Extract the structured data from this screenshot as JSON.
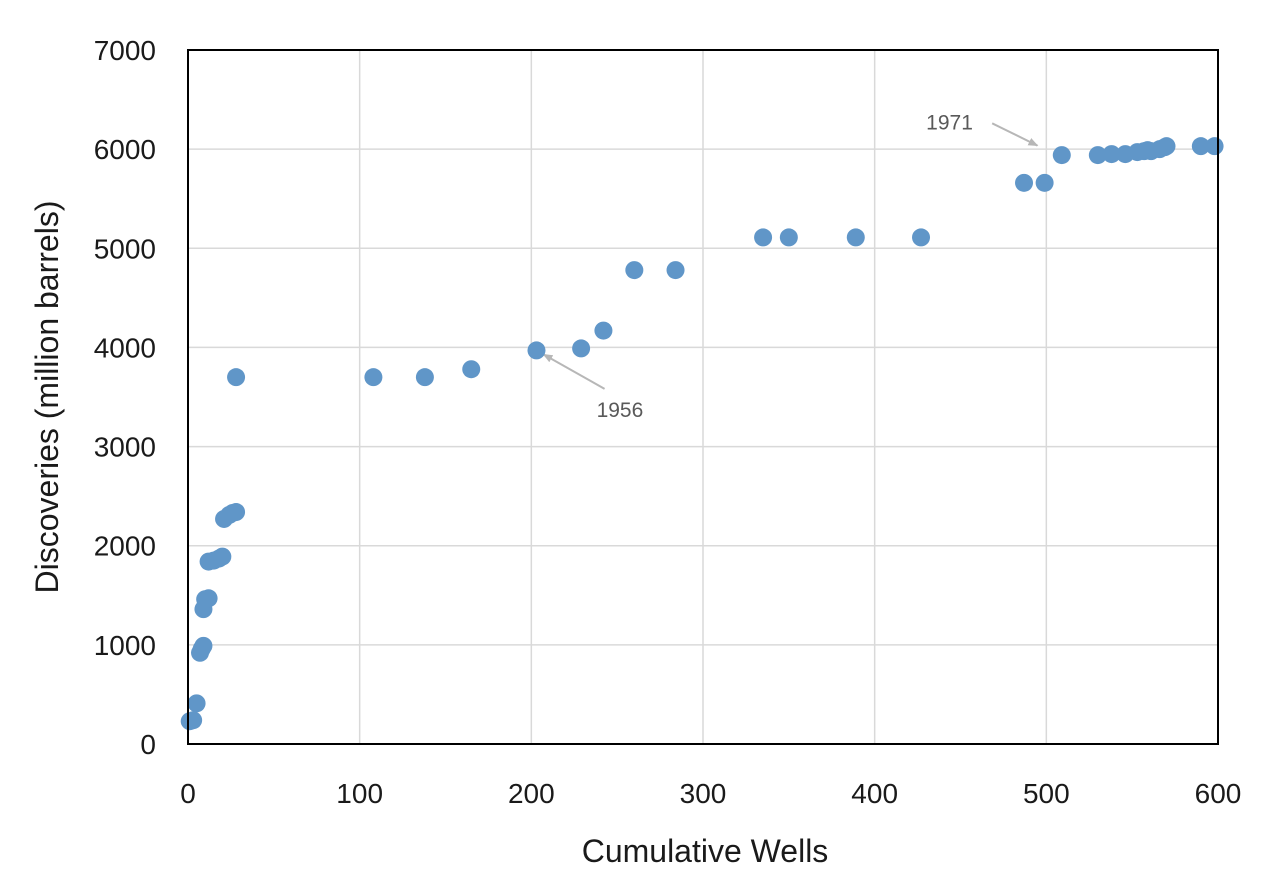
{
  "chart_data": {
    "type": "scatter",
    "title": "",
    "xlabel": "Cumulative Wells",
    "ylabel": "Discoveries (million barrels)",
    "xlim": [
      0,
      600
    ],
    "ylim": [
      0,
      7000
    ],
    "x_ticks": [
      0,
      100,
      200,
      300,
      400,
      500,
      600
    ],
    "y_ticks": [
      0,
      1000,
      2000,
      3000,
      4000,
      5000,
      6000,
      7000
    ],
    "grid": true,
    "legend": "none",
    "marker_color": "#6096c8",
    "series": [
      {
        "points": [
          [
            1,
            230
          ],
          [
            3,
            240
          ],
          [
            5,
            410
          ],
          [
            7,
            920
          ],
          [
            8,
            960
          ],
          [
            9,
            990
          ],
          [
            9,
            1360
          ],
          [
            10,
            1460
          ],
          [
            12,
            1470
          ],
          [
            12,
            1840
          ],
          [
            15,
            1850
          ],
          [
            18,
            1870
          ],
          [
            20,
            1890
          ],
          [
            21,
            2270
          ],
          [
            24,
            2310
          ],
          [
            26,
            2330
          ],
          [
            28,
            2340
          ],
          [
            28,
            3700
          ],
          [
            108,
            3700
          ],
          [
            138,
            3700
          ],
          [
            165,
            3780
          ],
          [
            203,
            3970
          ],
          [
            229,
            3990
          ],
          [
            242,
            4170
          ],
          [
            260,
            4780
          ],
          [
            284,
            4780
          ],
          [
            335,
            5110
          ],
          [
            350,
            5110
          ],
          [
            389,
            5110
          ],
          [
            427,
            5110
          ],
          [
            487,
            5660
          ],
          [
            499,
            5660
          ],
          [
            509,
            5940
          ],
          [
            530,
            5940
          ],
          [
            538,
            5950
          ],
          [
            546,
            5950
          ],
          [
            553,
            5970
          ],
          [
            557,
            5980
          ],
          [
            559,
            5990
          ],
          [
            561,
            5980
          ],
          [
            566,
            6000
          ],
          [
            569,
            6020
          ],
          [
            570,
            6030
          ],
          [
            590,
            6030
          ],
          [
            598,
            6030
          ]
        ]
      }
    ],
    "annotations": [
      {
        "text": "1956",
        "point": [
          203,
          3970
        ],
        "label_at": [
          238,
          3300
        ]
      },
      {
        "text": "1971",
        "point": [
          499,
          6000
        ],
        "label_at": [
          430,
          6200
        ]
      }
    ]
  }
}
